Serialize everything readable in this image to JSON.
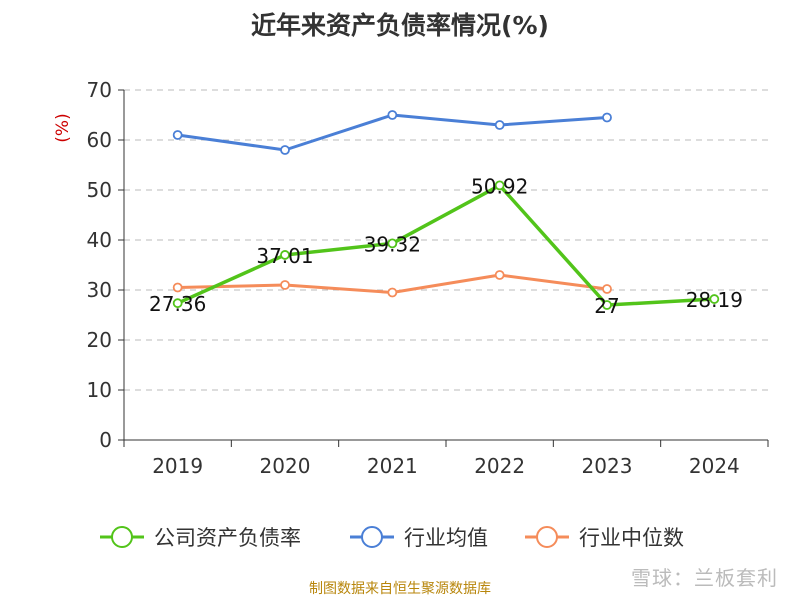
{
  "chart_data": {
    "type": "line",
    "title": "近年来资产负债率情况(%)",
    "ylabel": "(%)",
    "xlabel": "",
    "x": [
      "2019",
      "2020",
      "2021",
      "2022",
      "2023",
      "2024"
    ],
    "ylim": [
      0,
      70
    ],
    "yticks": [
      0,
      10,
      20,
      30,
      40,
      50,
      60,
      70
    ],
    "grid": true,
    "legend_position": "bottom",
    "series": [
      {
        "name": "公司资产负债率",
        "color": "#52c41a",
        "values": [
          27.36,
          37.01,
          39.32,
          50.92,
          27,
          28.19
        ],
        "labels": [
          "27.36",
          "37.01",
          "39.32",
          "50.92",
          "27",
          "28.19"
        ]
      },
      {
        "name": "行业均值",
        "color": "#4a7fd6",
        "values": [
          61,
          58,
          65,
          63,
          64.5,
          null
        ]
      },
      {
        "name": "行业中位数",
        "color": "#f58c5a",
        "values": [
          30.5,
          31,
          29.5,
          33,
          30.2,
          null
        ]
      }
    ]
  },
  "source_note": "制图数据来自恒生聚源数据库",
  "watermark": "雪球：兰板套利",
  "colors": {
    "ylabel": "#cc0000",
    "grid": "#bbbbbb",
    "axis": "#333333"
  }
}
